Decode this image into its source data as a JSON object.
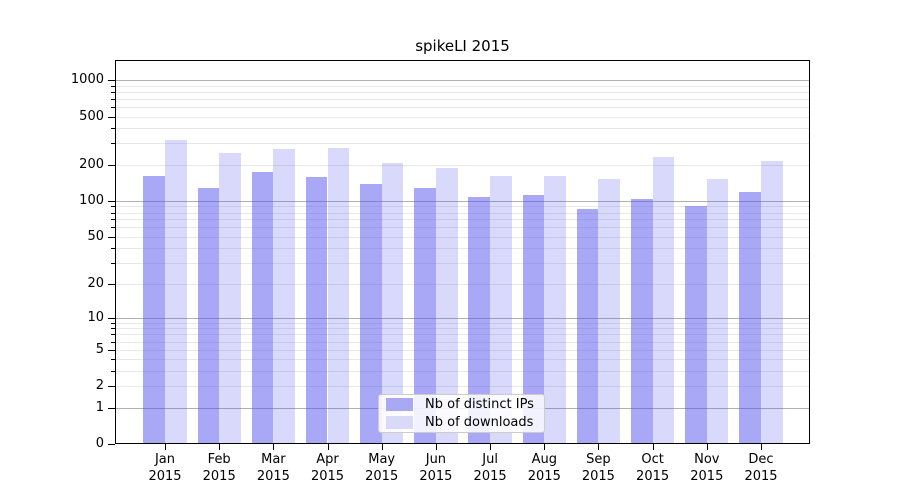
{
  "chart_data": {
    "type": "bar",
    "title": "spikeLI 2015",
    "categories": [
      "Jan 2015",
      "Feb 2015",
      "Mar 2015",
      "Apr 2015",
      "May 2015",
      "Jun 2015",
      "Jul 2015",
      "Aug 2015",
      "Sep 2015",
      "Oct 2015",
      "Nov 2015",
      "Dec 2015"
    ],
    "series": [
      {
        "name": "Nb of distinct IPs",
        "values": [
          160,
          128,
          175,
          158,
          138,
          127,
          108,
          112,
          86,
          104,
          91,
          118
        ]
      },
      {
        "name": "Nb of downloads",
        "values": [
          320,
          250,
          269,
          274,
          205,
          186,
          161,
          162,
          152,
          233,
          152,
          214
        ]
      }
    ],
    "xlabel": "",
    "ylabel": "",
    "yscale": "log10(1+x)",
    "ylim": [
      0,
      1465
    ],
    "yticks": [
      1000,
      500,
      200,
      100,
      50,
      20,
      10,
      5,
      2,
      1,
      0
    ],
    "grid": "both",
    "legend_position": "lower center"
  },
  "colors": {
    "ips_bar": "rgba(82,82,238,0.50)",
    "downloads_bar": "rgba(82,82,238,0.22)",
    "ips_swatch": "#a8a8f5",
    "downloads_swatch": "#d9d9f8",
    "major_grid": "#b0b0b0",
    "minor_grid": "#e8e8e8",
    "axis": "#000000"
  }
}
